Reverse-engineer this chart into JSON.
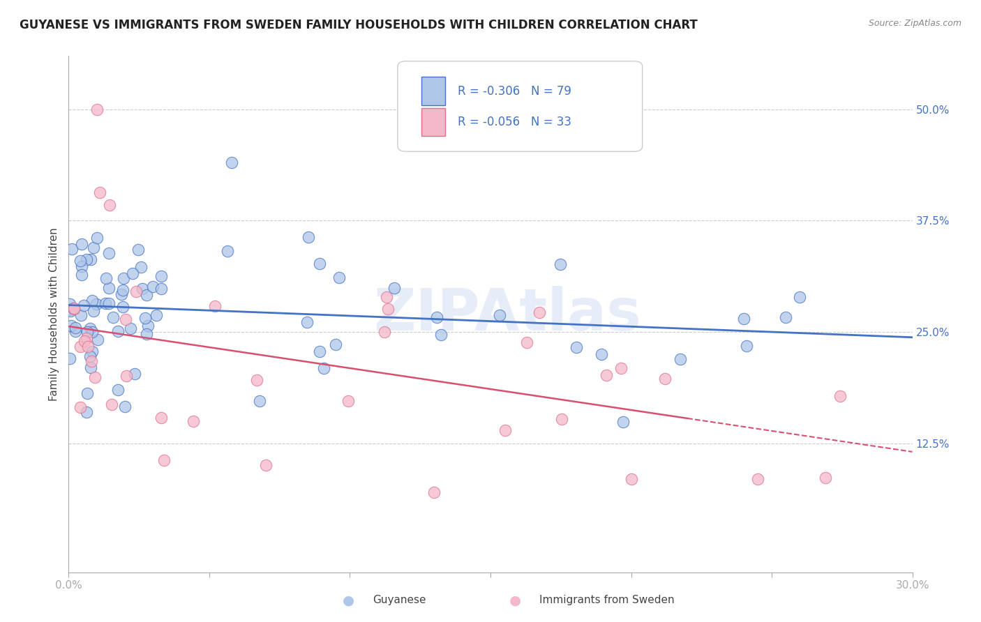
{
  "title": "GUYANESE VS IMMIGRANTS FROM SWEDEN FAMILY HOUSEHOLDS WITH CHILDREN CORRELATION CHART",
  "source": "Source: ZipAtlas.com",
  "ylabel": "Family Households with Children",
  "xlim": [
    0.0,
    0.3
  ],
  "ylim": [
    -0.02,
    0.56
  ],
  "xtick_positions": [
    0.0,
    0.05,
    0.1,
    0.15,
    0.2,
    0.25,
    0.3
  ],
  "xtick_labels": [
    "0.0%",
    "",
    "",
    "",
    "",
    "",
    "30.0%"
  ],
  "ytick_positions": [
    0.0,
    0.125,
    0.25,
    0.375,
    0.5
  ],
  "ytick_labels": [
    "",
    "12.5%",
    "25.0%",
    "37.5%",
    "50.0%"
  ],
  "blue_R": -0.306,
  "blue_N": 79,
  "pink_R": -0.056,
  "pink_N": 33,
  "blue_fill": "#aec6e8",
  "pink_fill": "#f5b8c8",
  "blue_edge": "#4472c4",
  "pink_edge": "#e07090",
  "blue_line": "#4472c4",
  "pink_line": "#d94f70",
  "legend_blue": "Guyanese",
  "legend_pink": "Immigrants from Sweden",
  "watermark": "ZIPAtlas",
  "bg": "#ffffff",
  "grid_color": "#cccccc",
  "tick_color": "#4472c4",
  "title_color": "#222222",
  "source_color": "#888888",
  "ylabel_color": "#444444"
}
